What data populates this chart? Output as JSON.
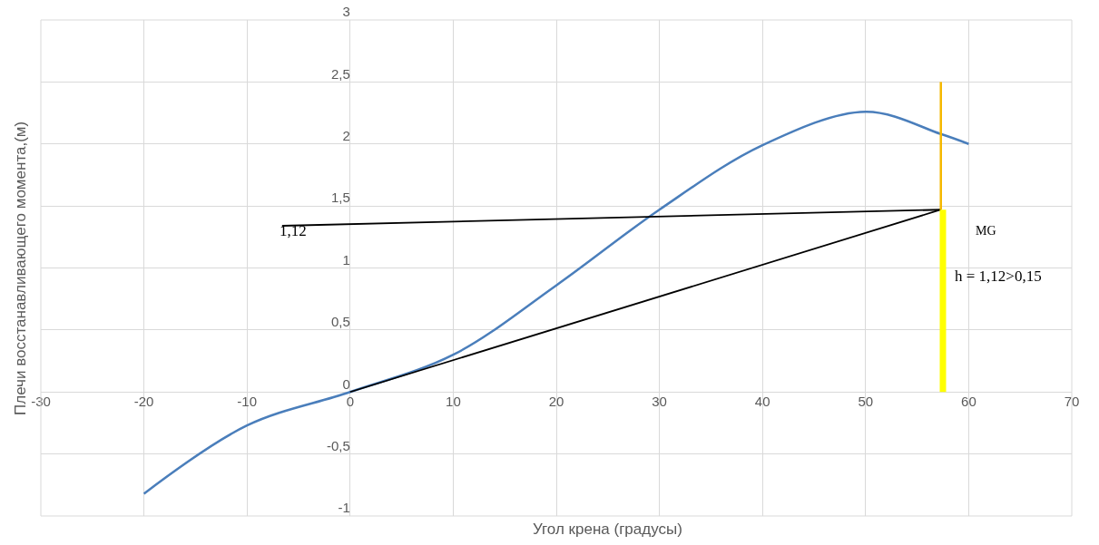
{
  "chart_data": {
    "type": "line",
    "xlabel": "Угол крена (градусы)",
    "ylabel": "Плечи восстанавливающего момента,(м)",
    "xlim": [
      -30,
      70
    ],
    "xticks": [
      -30,
      -20,
      -10,
      0,
      10,
      20,
      30,
      40,
      50,
      60,
      70
    ],
    "ylim": [
      -1,
      3
    ],
    "yticks": [
      {
        "value": -1,
        "label": "-1"
      },
      {
        "value": -0.5,
        "label": "-0,5"
      },
      {
        "value": 0,
        "label": "0"
      },
      {
        "value": 0.5,
        "label": "0,5"
      },
      {
        "value": 1,
        "label": "1"
      },
      {
        "value": 1.5,
        "label": "1,5"
      },
      {
        "value": 2,
        "label": "2"
      },
      {
        "value": 2.5,
        "label": "2,5"
      },
      {
        "value": 3,
        "label": "3"
      }
    ],
    "grid": true,
    "marker": "none",
    "line_style": "solid",
    "series": [
      {
        "color": "#4a7ebb",
        "x": [
          -20,
          -10,
          0,
          10,
          20,
          30,
          40,
          50,
          57.3,
          60
        ],
        "values": [
          -0.82,
          -0.27,
          0,
          0.3,
          0.86,
          1.47,
          1.99,
          2.26,
          2.08,
          2.0
        ]
      },
      {
        "color": "#000000",
        "x": [
          0,
          57.3
        ],
        "values": [
          0,
          1.47
        ]
      },
      {
        "color": "#000000",
        "x": [
          -6.6,
          57.3
        ],
        "values": [
          1.34,
          1.47
        ]
      },
      {
        "color": "#f5b800",
        "x": [
          57.3,
          57.3
        ],
        "values": [
          1.47,
          2.5
        ]
      },
      {
        "color": "#ffff00",
        "x": [
          57.5,
          57.5
        ],
        "values": [
          0,
          1.47
        ]
      }
    ],
    "annotations": [
      "1,12",
      "MG",
      "h = 1,12>0,15"
    ]
  }
}
